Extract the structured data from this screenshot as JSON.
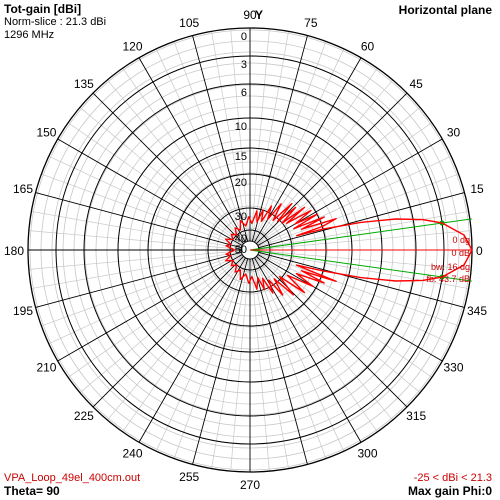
{
  "header": {
    "title": "Tot-gain [dBi]",
    "norm_slice": "Norm-slice : 21.3 dBi",
    "frequency": "1296 MHz",
    "plane": "Horizontal plane"
  },
  "footer": {
    "filename": "VPA_Loop_49el_400cm.out",
    "theta": "Theta= 90",
    "range": "-25 < dBi < 21.3",
    "max_gain": "Max gain Phi:0"
  },
  "axis_label_y": "Y",
  "colors": {
    "pattern": "#ff0000",
    "beamwidth": "#00aa00",
    "grid_bold": "#000000",
    "grid_light": "#c8c8c8",
    "annotation": "#cc0000"
  },
  "chart_data": {
    "type": "polar-line",
    "angle_unit": "degrees",
    "angle_ticks": [
      0,
      15,
      30,
      45,
      60,
      75,
      90,
      105,
      120,
      135,
      150,
      165,
      180,
      195,
      210,
      225,
      240,
      255,
      270,
      285,
      300,
      315,
      330,
      345
    ],
    "angle_tick_labels": [
      "0",
      "15",
      "30",
      "45",
      "60",
      "75",
      "90",
      "105",
      "120",
      "135",
      "150",
      "165",
      "180",
      "195",
      "210",
      "225",
      "240",
      "255",
      "270",
      "",
      "300",
      "315",
      "330",
      "345"
    ],
    "radial_ticks_db": [
      0,
      -3,
      -6,
      -10,
      -15,
      -20,
      -30,
      -40,
      -50
    ],
    "radial_tick_labels": [
      "0",
      "3",
      "6",
      "10",
      "15",
      "20",
      "30",
      "40",
      "50"
    ],
    "annotations": {
      "direction": "0 dg",
      "peak": "0 dB",
      "beamwidth": "bw: 16 dg",
      "front_back": "fb: 43.7 dB"
    },
    "beamwidth_lines_deg": [
      8,
      -8
    ],
    "series": [
      {
        "points": [
          [
            0,
            0
          ],
          [
            4,
            -0.8
          ],
          [
            8,
            -3
          ],
          [
            10,
            -5
          ],
          [
            12,
            -8
          ],
          [
            14,
            -13
          ],
          [
            16,
            -20
          ],
          [
            17,
            -28
          ],
          [
            18,
            -20
          ],
          [
            20,
            -17
          ],
          [
            22,
            -26
          ],
          [
            24,
            -19
          ],
          [
            26,
            -28
          ],
          [
            28,
            -20
          ],
          [
            30,
            -27
          ],
          [
            33,
            -21
          ],
          [
            36,
            -29
          ],
          [
            38,
            -22
          ],
          [
            40,
            -30
          ],
          [
            43,
            -24
          ],
          [
            46,
            -31
          ],
          [
            48,
            -24
          ],
          [
            52,
            -32
          ],
          [
            56,
            -26
          ],
          [
            60,
            -33
          ],
          [
            64,
            -28
          ],
          [
            68,
            -35
          ],
          [
            72,
            -30
          ],
          [
            76,
            -36
          ],
          [
            80,
            -31
          ],
          [
            86,
            -37
          ],
          [
            92,
            -34
          ],
          [
            100,
            -38
          ],
          [
            108,
            -35
          ],
          [
            116,
            -39
          ],
          [
            124,
            -37
          ],
          [
            132,
            -40
          ],
          [
            140,
            -38
          ],
          [
            148,
            -40
          ],
          [
            156,
            -37
          ],
          [
            164,
            -40
          ],
          [
            170,
            -38
          ],
          [
            176,
            -42
          ],
          [
            180,
            -44
          ],
          [
            184,
            -42
          ],
          [
            190,
            -38
          ],
          [
            196,
            -40
          ],
          [
            204,
            -37
          ],
          [
            212,
            -40
          ],
          [
            220,
            -38
          ],
          [
            228,
            -40
          ],
          [
            236,
            -37
          ],
          [
            244,
            -39
          ],
          [
            252,
            -35
          ],
          [
            260,
            -38
          ],
          [
            268,
            -34
          ],
          [
            274,
            -37
          ],
          [
            280,
            -31
          ],
          [
            286,
            -36
          ],
          [
            290,
            -30
          ],
          [
            294,
            -35
          ],
          [
            298,
            -28
          ],
          [
            302,
            -33
          ],
          [
            306,
            -26
          ],
          [
            310,
            -32
          ],
          [
            314,
            -24
          ],
          [
            318,
            -31
          ],
          [
            322,
            -22
          ],
          [
            326,
            -29
          ],
          [
            330,
            -21
          ],
          [
            333,
            -27
          ],
          [
            336,
            -19
          ],
          [
            338,
            -26
          ],
          [
            340,
            -17
          ],
          [
            342,
            -28
          ],
          [
            344,
            -20
          ],
          [
            346,
            -13
          ],
          [
            348,
            -8
          ],
          [
            350,
            -5
          ],
          [
            352,
            -3
          ],
          [
            356,
            -0.8
          ],
          [
            360,
            0
          ]
        ]
      }
    ]
  }
}
